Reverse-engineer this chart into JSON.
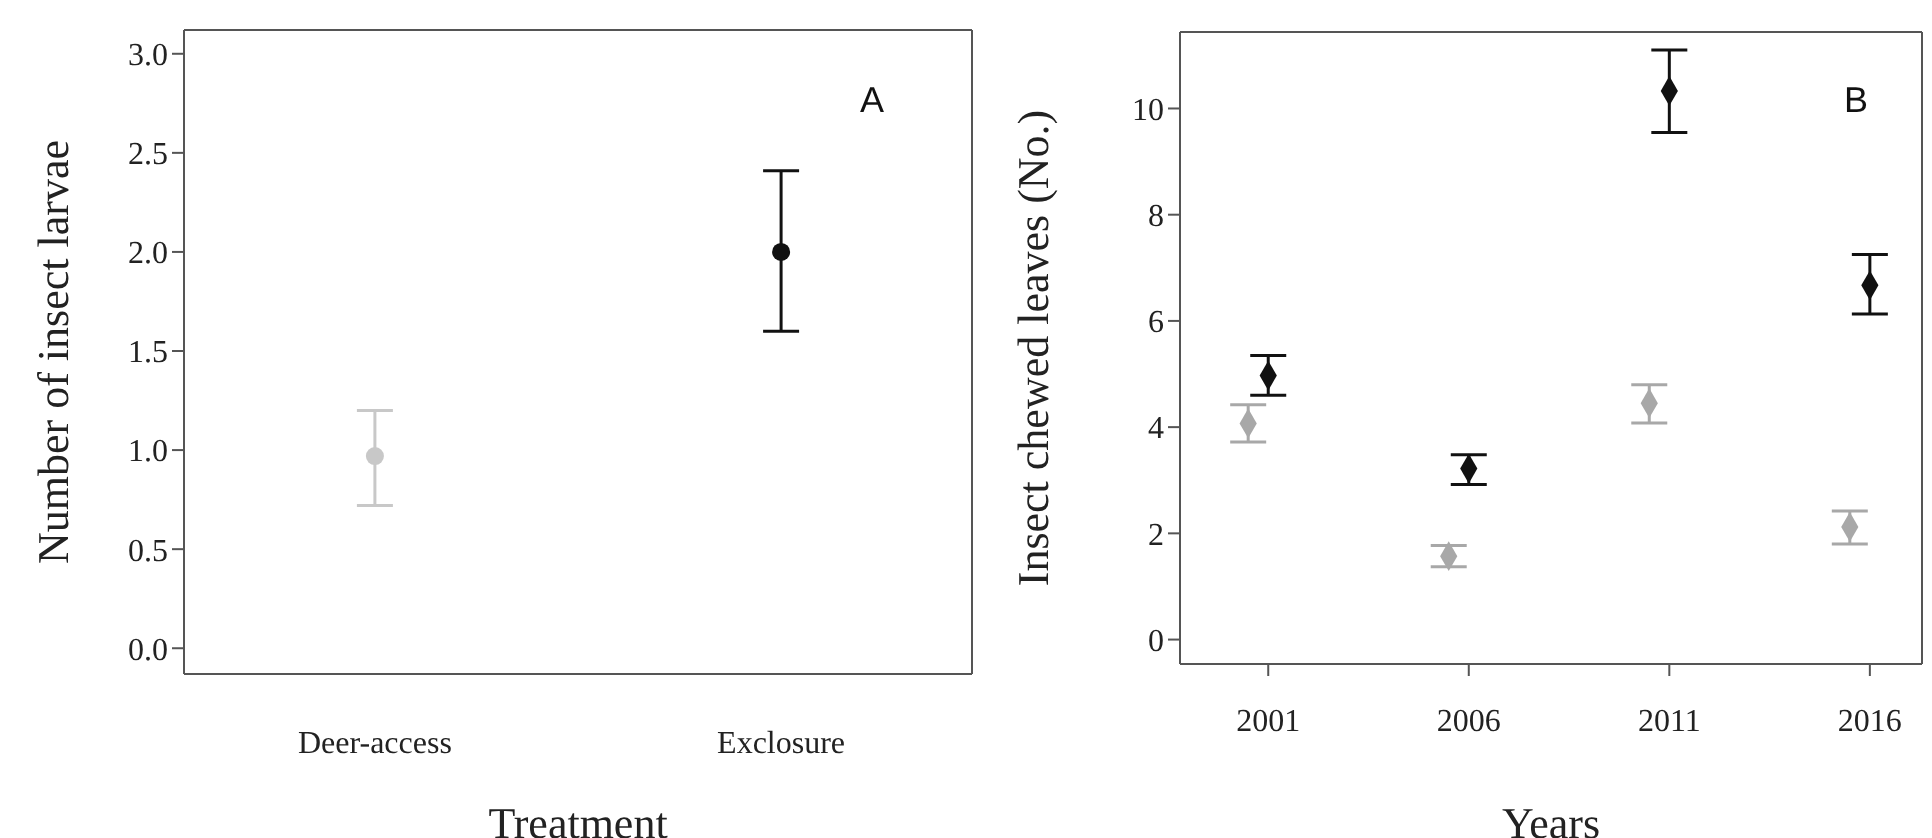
{
  "chart_data": [
    {
      "type": "scatter",
      "categories": [
        "Deer-access",
        "Exclosure"
      ],
      "xlabel": "Treatment",
      "ylabel": "Number of insect larvae",
      "ylim": [
        -0.13,
        3.12
      ],
      "yticks": [
        {
          "value": 0,
          "label": "0.0"
        },
        {
          "value": 0.5,
          "label": "0.5"
        },
        {
          "value": 1,
          "label": "1.0"
        },
        {
          "value": 1.5,
          "label": "1.5"
        },
        {
          "value": 2,
          "label": "2.0"
        },
        {
          "value": 2.5,
          "label": "2.5"
        },
        {
          "value": 3,
          "label": "3.0"
        }
      ],
      "marker": "circle",
      "annotations": [
        "A"
      ],
      "series": [
        {
          "color": "#c8c8c8",
          "values": [
            0.97,
            null
          ],
          "errors": [
            [
              0.72,
              1.2
            ],
            null
          ]
        },
        {
          "color": "#111111",
          "values": [
            null,
            2.0
          ],
          "errors": [
            null,
            [
              1.6,
              2.41
            ]
          ]
        }
      ]
    },
    {
      "type": "scatter",
      "xlabel": "Years",
      "ylabel": "Insect chewed leaves (No.)",
      "xlim": [
        1998.8,
        2017.3
      ],
      "xticks": [
        2001,
        2006,
        2011,
        2016
      ],
      "ylim": [
        -0.46,
        11.44
      ],
      "yticks": [
        0,
        2,
        4,
        6,
        8,
        10
      ],
      "marker": "diamond",
      "annotations": [
        "B"
      ],
      "series": [
        {
          "color": "#a8a8a8",
          "x": [
            2000.5,
            2005.5,
            2010.5,
            2015.5
          ],
          "values": [
            4.07,
            1.57,
            4.45,
            2.12
          ],
          "errors": [
            [
              3.72,
              4.42
            ],
            [
              1.37,
              1.77
            ],
            [
              4.08,
              4.8
            ],
            [
              1.8,
              2.42
            ]
          ]
        },
        {
          "color": "#111111",
          "x": [
            2001,
            2006,
            2011,
            2016
          ],
          "values": [
            4.97,
            3.22,
            10.33,
            6.67
          ],
          "errors": [
            [
              4.6,
              5.35
            ],
            [
              2.92,
              3.48
            ],
            [
              9.55,
              11.1
            ],
            [
              6.13,
              7.25
            ]
          ]
        }
      ]
    }
  ]
}
